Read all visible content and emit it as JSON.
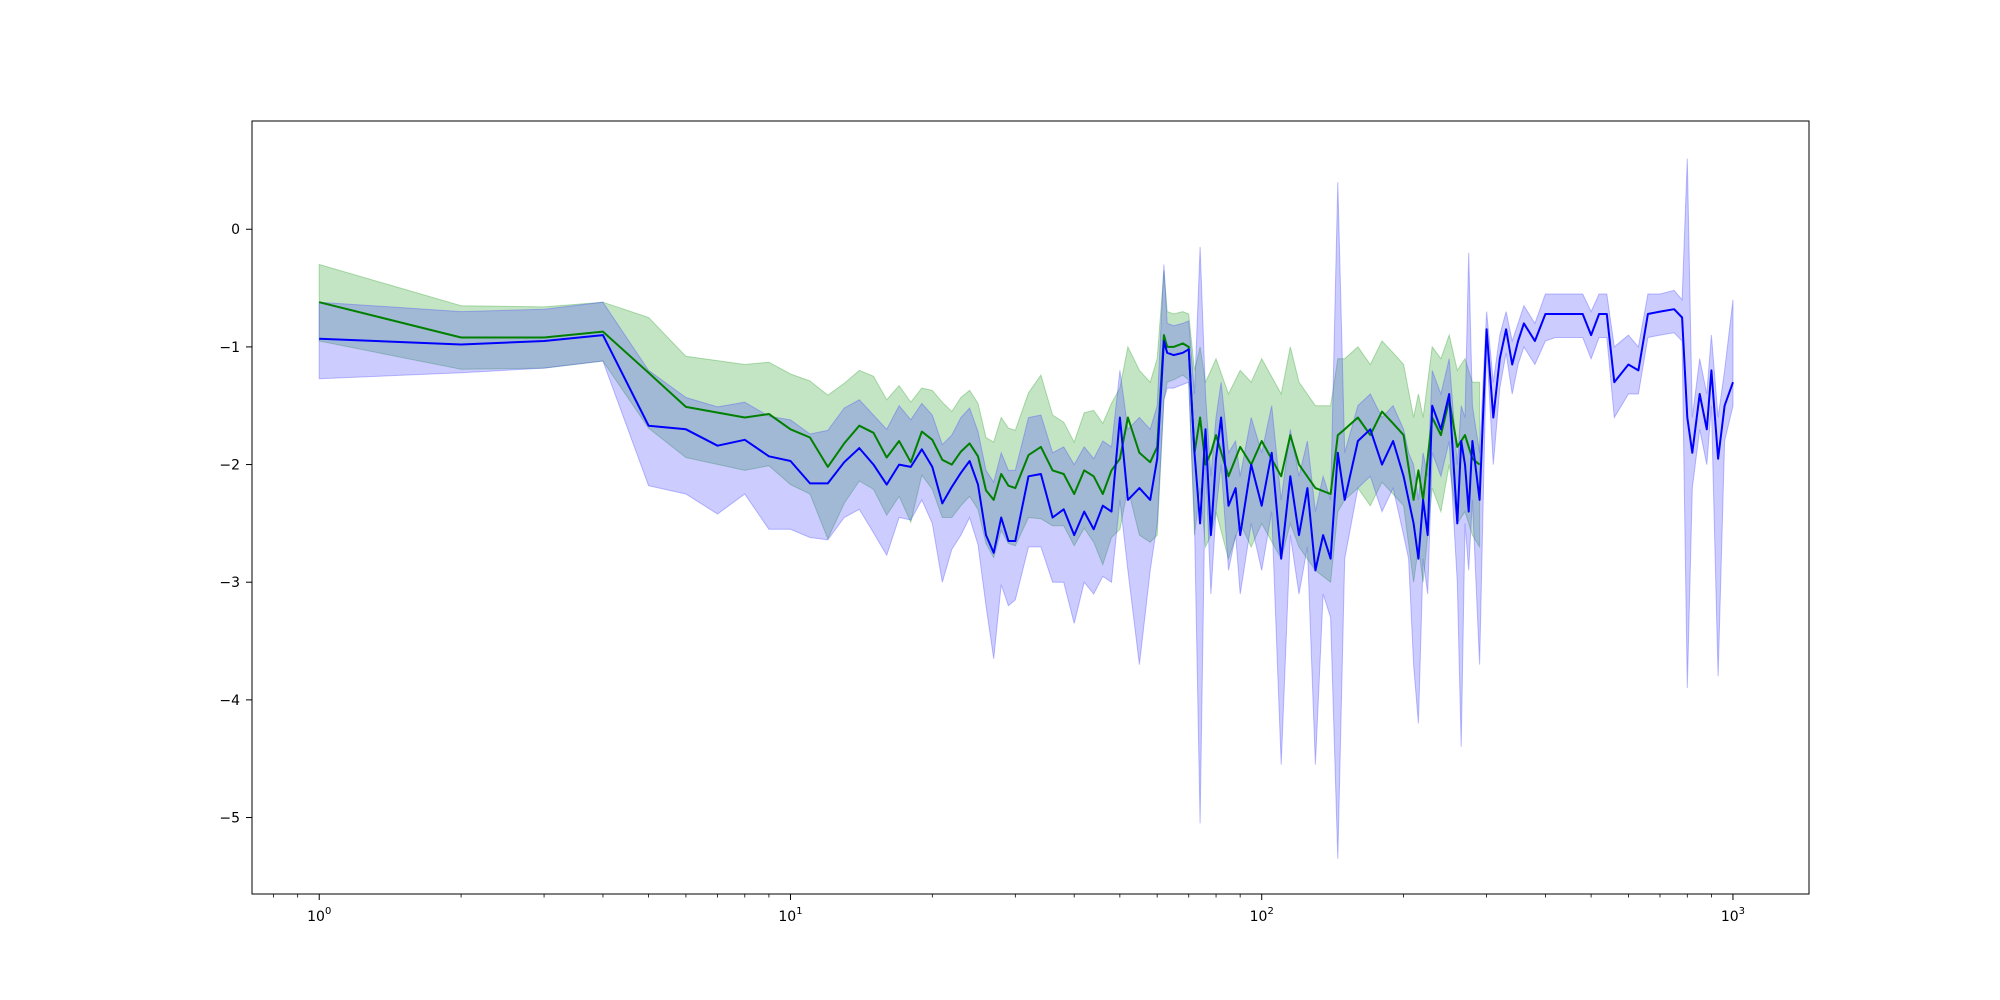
{
  "chart_data": {
    "type": "line",
    "title": "",
    "xlabel": "",
    "ylabel": "",
    "x_scale": "log",
    "xlim": [
      0.72,
      1450
    ],
    "ylim": [
      -5.65,
      0.92
    ],
    "grid": false,
    "x_ticks": [
      {
        "value": 1,
        "base": "10",
        "exp": "0"
      },
      {
        "value": 10,
        "base": "10",
        "exp": "1"
      },
      {
        "value": 100,
        "base": "10",
        "exp": "2"
      },
      {
        "value": 1000,
        "base": "10",
        "exp": "3"
      }
    ],
    "y_ticks": [
      {
        "value": 0,
        "label": "0"
      },
      {
        "value": -1,
        "label": "−1"
      },
      {
        "value": -2,
        "label": "−2"
      },
      {
        "value": -3,
        "label": "−3"
      },
      {
        "value": -4,
        "label": "−4"
      },
      {
        "value": -5,
        "label": "−5"
      }
    ],
    "series": [
      {
        "color": "#008000",
        "band_color": "#2ca02c",
        "x": [
          1,
          2,
          3,
          4,
          5,
          6,
          8,
          9,
          10,
          11,
          12,
          13,
          14,
          15,
          16,
          17,
          18,
          19,
          20,
          21,
          22,
          23,
          24,
          25,
          26,
          27,
          28,
          29,
          30,
          32,
          34,
          36,
          38,
          40,
          42,
          44,
          46,
          48,
          50,
          52,
          55,
          58,
          60,
          62,
          63,
          65,
          68,
          70,
          72,
          74,
          76,
          78,
          80,
          85,
          90,
          95,
          100,
          110,
          115,
          120,
          130,
          140,
          145,
          150,
          160,
          170,
          180,
          190,
          200,
          210,
          215,
          220,
          230,
          240,
          250,
          260,
          270,
          280,
          290
        ],
        "mean": [
          -0.62,
          -0.92,
          -0.92,
          -0.87,
          -1.22,
          -1.51,
          -1.6,
          -1.57,
          -1.7,
          -1.77,
          -2.02,
          -1.82,
          -1.67,
          -1.73,
          -1.94,
          -1.8,
          -1.98,
          -1.72,
          -1.79,
          -1.96,
          -2.0,
          -1.89,
          -1.82,
          -1.93,
          -2.22,
          -2.3,
          -2.08,
          -2.18,
          -2.2,
          -1.92,
          -1.85,
          -2.05,
          -2.08,
          -2.25,
          -2.05,
          -2.1,
          -2.25,
          -2.05,
          -1.95,
          -1.6,
          -1.9,
          -1.98,
          -1.85,
          -0.9,
          -1.0,
          -1.0,
          -0.97,
          -1.0,
          -1.9,
          -1.6,
          -2.0,
          -1.9,
          -1.75,
          -2.1,
          -1.85,
          -2.0,
          -1.8,
          -2.1,
          -1.75,
          -2.0,
          -2.2,
          -2.25,
          -1.75,
          -1.7,
          -1.6,
          -1.75,
          -1.55,
          -1.65,
          -1.75,
          -2.3,
          -2.05,
          -2.3,
          -1.6,
          -1.75,
          -1.45,
          -1.85,
          -1.75,
          -1.95,
          -2.0
        ],
        "upper": [
          -0.3,
          -0.65,
          -0.66,
          -0.62,
          -0.75,
          -1.08,
          -1.15,
          -1.13,
          -1.23,
          -1.29,
          -1.41,
          -1.31,
          -1.2,
          -1.25,
          -1.45,
          -1.33,
          -1.47,
          -1.35,
          -1.37,
          -1.47,
          -1.55,
          -1.43,
          -1.37,
          -1.48,
          -1.77,
          -1.81,
          -1.6,
          -1.69,
          -1.71,
          -1.39,
          -1.24,
          -1.58,
          -1.64,
          -1.81,
          -1.56,
          -1.54,
          -1.65,
          -1.48,
          -1.35,
          -1.0,
          -1.2,
          -1.3,
          -1.1,
          -0.35,
          -0.7,
          -0.72,
          -0.7,
          -0.72,
          -1.2,
          -1.0,
          -1.3,
          -1.2,
          -1.1,
          -1.4,
          -1.2,
          -1.3,
          -1.1,
          -1.4,
          -1.0,
          -1.3,
          -1.5,
          -1.5,
          -1.1,
          -1.1,
          -1.0,
          -1.15,
          -0.95,
          -1.05,
          -1.15,
          -1.6,
          -1.4,
          -1.6,
          -1.0,
          -1.1,
          -0.9,
          -1.2,
          -1.1,
          -1.3,
          -1.3
        ],
        "lower": [
          -0.95,
          -1.19,
          -1.18,
          -1.12,
          -1.69,
          -1.94,
          -2.05,
          -2.01,
          -2.17,
          -2.25,
          -2.63,
          -2.33,
          -2.14,
          -2.21,
          -2.43,
          -2.27,
          -2.49,
          -2.09,
          -2.21,
          -2.45,
          -2.45,
          -2.35,
          -2.27,
          -2.38,
          -2.67,
          -2.79,
          -2.56,
          -2.67,
          -2.69,
          -2.45,
          -2.46,
          -2.52,
          -2.52,
          -2.69,
          -2.54,
          -2.66,
          -2.85,
          -2.62,
          -2.55,
          -2.2,
          -2.6,
          -2.66,
          -2.6,
          -1.45,
          -1.3,
          -1.28,
          -1.24,
          -1.28,
          -2.6,
          -2.2,
          -2.7,
          -2.6,
          -2.4,
          -2.8,
          -2.5,
          -2.7,
          -2.5,
          -2.8,
          -2.5,
          -2.7,
          -2.9,
          -3.0,
          -2.4,
          -2.3,
          -2.2,
          -2.35,
          -2.15,
          -2.25,
          -2.35,
          -3.0,
          -2.7,
          -3.0,
          -2.2,
          -2.4,
          -2.0,
          -2.5,
          -2.4,
          -2.6,
          -2.7
        ]
      },
      {
        "color": "#0000ff",
        "band_color": "#4747ff",
        "x": [
          1,
          2,
          3,
          4,
          5,
          6,
          7,
          8,
          9,
          10,
          11,
          12,
          13,
          14,
          15,
          16,
          17,
          18,
          19,
          20,
          21,
          22,
          23,
          24,
          25,
          26,
          27,
          28,
          29,
          30,
          32,
          34,
          36,
          38,
          40,
          42,
          44,
          46,
          48,
          50,
          52,
          55,
          58,
          60,
          62,
          63,
          65,
          68,
          70,
          72,
          74,
          76,
          78,
          80,
          82,
          85,
          88,
          90,
          95,
          100,
          105,
          110,
          115,
          120,
          125,
          130,
          135,
          140,
          145,
          150,
          160,
          170,
          180,
          190,
          200,
          205,
          210,
          215,
          220,
          225,
          230,
          240,
          250,
          260,
          265,
          270,
          275,
          280,
          290,
          300,
          310,
          320,
          330,
          340,
          350,
          360,
          380,
          400,
          420,
          450,
          480,
          500,
          520,
          540,
          560,
          600,
          630,
          660,
          700,
          750,
          780,
          800,
          820,
          850,
          880,
          900,
          930,
          960,
          1000
        ],
        "mean": [
          -0.93,
          -0.98,
          -0.95,
          -0.9,
          -1.67,
          -1.7,
          -1.84,
          -1.79,
          -1.93,
          -1.97,
          -2.16,
          -2.16,
          -1.98,
          -1.86,
          -2.0,
          -2.17,
          -2.0,
          -2.02,
          -1.87,
          -2.02,
          -2.33,
          -2.19,
          -2.07,
          -1.97,
          -2.17,
          -2.6,
          -2.75,
          -2.45,
          -2.65,
          -2.65,
          -2.1,
          -2.08,
          -2.45,
          -2.38,
          -2.6,
          -2.4,
          -2.55,
          -2.35,
          -2.4,
          -1.6,
          -2.3,
          -2.2,
          -2.3,
          -1.95,
          -0.95,
          -1.05,
          -1.07,
          -1.05,
          -1.02,
          -1.9,
          -2.5,
          -1.7,
          -2.6,
          -1.95,
          -1.6,
          -2.35,
          -2.2,
          -2.6,
          -2.0,
          -2.35,
          -1.9,
          -2.8,
          -2.1,
          -2.6,
          -2.2,
          -2.9,
          -2.6,
          -2.8,
          -1.9,
          -2.3,
          -1.8,
          -1.7,
          -2.0,
          -1.8,
          -2.1,
          -2.3,
          -2.5,
          -2.8,
          -2.3,
          -2.6,
          -1.5,
          -1.7,
          -1.4,
          -2.5,
          -1.8,
          -2.0,
          -2.4,
          -1.8,
          -2.3,
          -0.85,
          -1.6,
          -1.1,
          -0.85,
          -1.15,
          -0.95,
          -0.8,
          -0.95,
          -0.72,
          -0.72,
          -0.72,
          -0.72,
          -0.9,
          -0.72,
          -0.72,
          -1.3,
          -1.15,
          -1.2,
          -0.72,
          -0.7,
          -0.68,
          -0.75,
          -1.6,
          -1.9,
          -1.4,
          -1.7,
          -1.2,
          -1.95,
          -1.5,
          -1.3
        ],
        "upper": [
          -0.62,
          -0.7,
          -0.68,
          -0.62,
          -1.2,
          -1.43,
          -1.51,
          -1.47,
          -1.59,
          -1.62,
          -1.74,
          -1.71,
          -1.52,
          -1.45,
          -1.58,
          -1.7,
          -1.5,
          -1.62,
          -1.48,
          -1.58,
          -1.83,
          -1.75,
          -1.6,
          -1.52,
          -1.72,
          -2.05,
          -2.15,
          -1.9,
          -2.05,
          -2.05,
          -1.6,
          -1.58,
          -1.9,
          -1.85,
          -2.0,
          -1.85,
          -1.95,
          -1.8,
          -1.85,
          -1.2,
          -1.7,
          -1.6,
          -1.7,
          -1.5,
          -0.3,
          -0.8,
          -0.82,
          -0.8,
          -0.78,
          -1.4,
          -0.15,
          -1.4,
          -2.1,
          -1.6,
          -1.3,
          -1.9,
          -1.8,
          -2.1,
          -1.6,
          -1.9,
          -1.5,
          -2.3,
          -1.7,
          -2.1,
          -1.8,
          -2.4,
          -2.1,
          -2.3,
          0.4,
          -1.9,
          -1.5,
          -1.4,
          -1.6,
          -1.5,
          -1.7,
          -1.9,
          -2.0,
          -2.3,
          -1.9,
          -2.1,
          -1.2,
          -1.4,
          -1.1,
          -2.0,
          -1.5,
          -1.6,
          -0.2,
          -1.5,
          -1.9,
          -0.7,
          -1.3,
          -0.9,
          -0.7,
          -0.95,
          -0.8,
          -0.65,
          -0.8,
          -0.55,
          -0.55,
          -0.55,
          -0.55,
          -0.7,
          -0.55,
          -0.55,
          -1.0,
          -0.9,
          -1.0,
          -0.55,
          -0.55,
          -0.52,
          -0.6,
          0.6,
          -1.6,
          -1.1,
          -1.4,
          -0.9,
          -1.6,
          -1.2,
          -0.6
        ],
        "lower": [
          -1.27,
          -1.22,
          -1.18,
          -1.12,
          -2.18,
          -2.25,
          -2.42,
          -2.25,
          -2.55,
          -2.55,
          -2.62,
          -2.64,
          -2.45,
          -2.38,
          -2.58,
          -2.77,
          -2.45,
          -2.47,
          -2.3,
          -2.5,
          -3.0,
          -2.72,
          -2.6,
          -2.45,
          -2.68,
          -3.2,
          -3.65,
          -3.02,
          -3.2,
          -3.15,
          -2.7,
          -2.7,
          -3.0,
          -3.0,
          -3.35,
          -3.0,
          -3.1,
          -2.95,
          -3.0,
          -2.3,
          -2.9,
          -3.7,
          -2.9,
          -2.5,
          -1.45,
          -1.35,
          -1.35,
          -1.32,
          -1.3,
          -2.5,
          -5.05,
          -2.0,
          -3.1,
          -2.4,
          -2.0,
          -2.9,
          -2.6,
          -3.1,
          -2.5,
          -2.9,
          -2.4,
          -4.55,
          -2.6,
          -3.1,
          -2.7,
          -4.55,
          -3.1,
          -3.3,
          -5.35,
          -2.8,
          -2.2,
          -2.1,
          -2.4,
          -2.2,
          -2.6,
          -2.8,
          -3.7,
          -4.2,
          -2.8,
          -3.1,
          -1.9,
          -2.1,
          -1.8,
          -3.0,
          -4.4,
          -2.5,
          -2.9,
          -2.3,
          -3.7,
          -1.0,
          -2.0,
          -1.35,
          -1.05,
          -1.4,
          -1.15,
          -1.0,
          -1.15,
          -0.95,
          -0.92,
          -0.92,
          -0.92,
          -1.1,
          -0.92,
          -0.92,
          -1.6,
          -1.4,
          -1.4,
          -0.92,
          -0.9,
          -0.88,
          -0.95,
          -3.9,
          -2.2,
          -1.7,
          -2.0,
          -1.5,
          -3.8,
          -1.8,
          -1.5
        ]
      }
    ]
  }
}
